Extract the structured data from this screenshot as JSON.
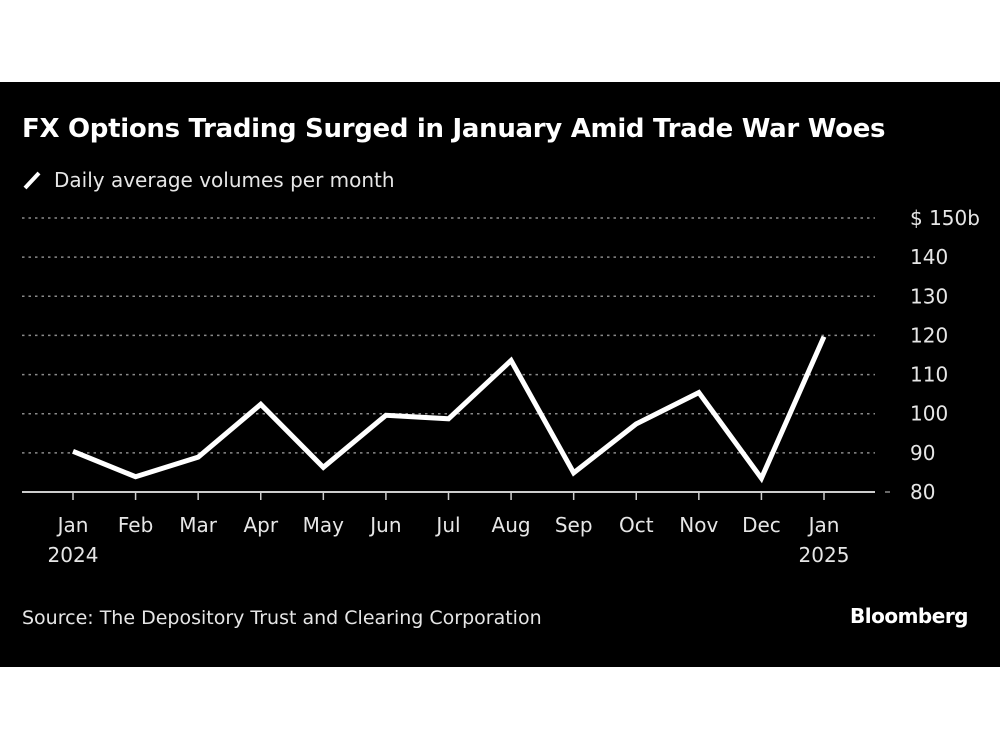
{
  "title": "FX Options Trading Surged in January Amid Trade War Woes",
  "legend": {
    "icon": "line-swatch-icon",
    "label": "Daily average volumes per month",
    "color": "#ffffff"
  },
  "source": "Source: The Depository Trust and Clearing Corporation",
  "brand": "Bloomberg",
  "colors": {
    "background": "#000000",
    "line": "#ffffff",
    "grid": "#8a8a8a",
    "axis": "#cccccc",
    "text": "#e6e6e6"
  },
  "chart_data": {
    "type": "line",
    "title": "FX Options Trading Surged in January Amid Trade War Woes",
    "subtitle": "Daily average volumes per month",
    "xlabel": "",
    "ylabel": "",
    "categories": [
      "Jan 2024",
      "Feb",
      "Mar",
      "Apr",
      "May",
      "Jun",
      "Jul",
      "Aug",
      "Sep",
      "Oct",
      "Nov",
      "Dec",
      "Jan 2025"
    ],
    "x_tick_labels": [
      {
        "line1": "Jan",
        "line2": "2024"
      },
      {
        "line1": "Feb",
        "line2": ""
      },
      {
        "line1": "Mar",
        "line2": ""
      },
      {
        "line1": "Apr",
        "line2": ""
      },
      {
        "line1": "May",
        "line2": ""
      },
      {
        "line1": "Jun",
        "line2": ""
      },
      {
        "line1": "Jul",
        "line2": ""
      },
      {
        "line1": "Aug",
        "line2": ""
      },
      {
        "line1": "Sep",
        "line2": ""
      },
      {
        "line1": "Oct",
        "line2": ""
      },
      {
        "line1": "Nov",
        "line2": ""
      },
      {
        "line1": "Dec",
        "line2": ""
      },
      {
        "line1": "Jan",
        "line2": "2025"
      }
    ],
    "series": [
      {
        "name": "Daily average volumes per month",
        "unit": "$ billions",
        "values": [
          90.4,
          83.9,
          88.9,
          102.4,
          86.3,
          99.6,
          98.7,
          113.6,
          84.9,
          97.4,
          105.4,
          83.5,
          119.7
        ]
      }
    ],
    "ylim": [
      80,
      150
    ],
    "y_ticks": [
      80,
      90,
      100,
      110,
      120,
      130,
      140,
      150
    ],
    "y_tick_labels": [
      "80",
      "90",
      "100",
      "110",
      "120",
      "130",
      "140",
      "$ 150b"
    ],
    "y_axis_side": "right",
    "grid": true,
    "grid_style": "dotted horizontal",
    "legend_position": "top-left"
  }
}
